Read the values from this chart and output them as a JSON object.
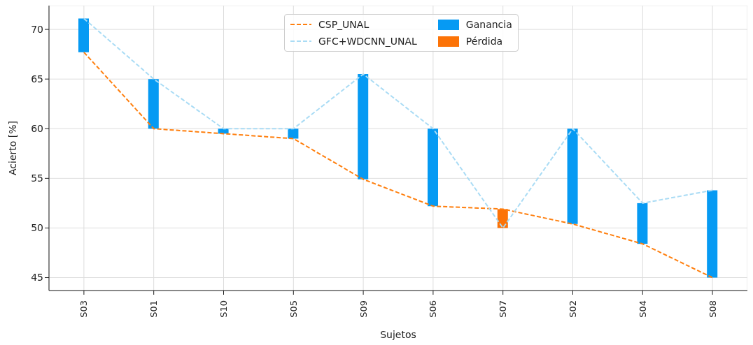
{
  "chart_data": {
    "type": "bar",
    "xlabel": "Sujetos",
    "ylabel": "Acierto [%]",
    "categories": [
      "S03",
      "S01",
      "S10",
      "S05",
      "S09",
      "S06",
      "S07",
      "S02",
      "S04",
      "S08"
    ],
    "series": [
      {
        "name": "CSP_UNAL",
        "type": "line",
        "color": "#ff7f0e",
        "values": [
          67.7,
          60.0,
          59.5,
          59.0,
          54.9,
          52.2,
          51.9,
          50.4,
          48.4,
          45.0
        ]
      },
      {
        "name": "GFC+WDCNN_UNAL",
        "type": "line",
        "color": "#aadcf5",
        "values": [
          71.1,
          65.0,
          60.0,
          60.0,
          65.5,
          60.0,
          50.0,
          60.0,
          52.5,
          53.8
        ]
      },
      {
        "name": "Ganancia",
        "color": "#069af3",
        "base": [
          67.7,
          60.0,
          59.5,
          59.0,
          54.9,
          52.2,
          null,
          50.4,
          48.4,
          45.0
        ],
        "values": [
          3.4,
          5.0,
          0.5,
          1.0,
          10.6,
          7.8,
          null,
          9.6,
          4.1,
          8.8
        ]
      },
      {
        "name": "Pérdida",
        "color": "#fc7307",
        "base": [
          null,
          null,
          null,
          null,
          null,
          null,
          50.0,
          null,
          null,
          null
        ],
        "values": [
          null,
          null,
          null,
          null,
          null,
          null,
          1.9,
          null,
          null,
          null
        ]
      }
    ],
    "ylim": [
      43.7,
      72.4
    ],
    "yticks": [
      45,
      50,
      55,
      60,
      65,
      70
    ],
    "grid": true,
    "legend": "top",
    "line_style": "dashed"
  }
}
